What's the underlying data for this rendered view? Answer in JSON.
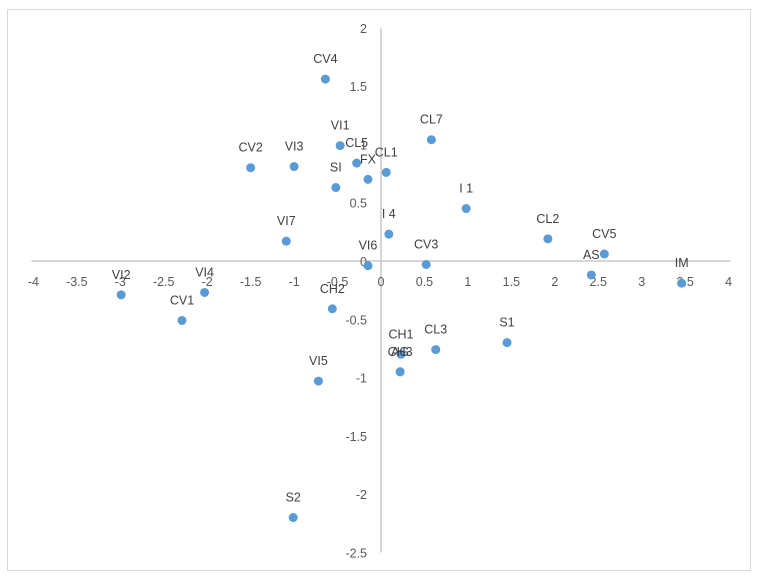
{
  "chart_data": {
    "type": "scatter",
    "title": "",
    "xlabel": "",
    "ylabel": "",
    "xlim": [
      -4,
      4
    ],
    "ylim": [
      -2.5,
      2
    ],
    "x_ticks": [
      -4,
      -3.5,
      -3,
      -2.5,
      -2,
      -1.5,
      -1,
      -0.5,
      0,
      0.5,
      1,
      1.5,
      2,
      2.5,
      3,
      3.5,
      4
    ],
    "y_ticks": [
      2,
      1.5,
      1,
      0.5,
      0,
      -0.5,
      -1,
      -1.5,
      -2,
      -2.5
    ],
    "grid": false,
    "legend": null,
    "marker_color": "#5b9bd5",
    "axis_color": "#bfbfbf",
    "points": [
      {
        "label": "CV4",
        "x": -0.64,
        "y": 1.56
      },
      {
        "label": "CL7",
        "x": 0.58,
        "y": 1.04
      },
      {
        "label": "VI1",
        "x": -0.47,
        "y": 0.99
      },
      {
        "label": "CL5",
        "x": -0.28,
        "y": 0.84
      },
      {
        "label": "FX",
        "x": -0.15,
        "y": 0.7
      },
      {
        "label": "CL1",
        "x": 0.06,
        "y": 0.76
      },
      {
        "label": "CV2",
        "x": -1.5,
        "y": 0.8
      },
      {
        "label": "VI3",
        "x": -1.0,
        "y": 0.81
      },
      {
        "label": "SI",
        "x": -0.52,
        "y": 0.63
      },
      {
        "label": "I 1",
        "x": 0.98,
        "y": 0.45
      },
      {
        "label": "I 4",
        "x": 0.09,
        "y": 0.23
      },
      {
        "label": "VI7",
        "x": -1.09,
        "y": 0.17
      },
      {
        "label": "CL2",
        "x": 1.92,
        "y": 0.19
      },
      {
        "label": "CV5",
        "x": 2.57,
        "y": 0.06
      },
      {
        "label": "AS",
        "x": 2.42,
        "y": -0.12
      },
      {
        "label": "IM",
        "x": 3.46,
        "y": -0.19
      },
      {
        "label": "VI6",
        "x": -0.15,
        "y": -0.04
      },
      {
        "label": "CV3",
        "x": 0.52,
        "y": -0.03
      },
      {
        "label": "VI2",
        "x": -2.99,
        "y": -0.29
      },
      {
        "label": "VI4",
        "x": -2.03,
        "y": -0.27
      },
      {
        "label": "CV1",
        "x": -2.29,
        "y": -0.51
      },
      {
        "label": "CH2",
        "x": -0.56,
        "y": -0.41
      },
      {
        "label": "CH1",
        "x": 0.23,
        "y": -0.8
      },
      {
        "label": "CL3",
        "x": 0.63,
        "y": -0.76
      },
      {
        "label": "S1",
        "x": 1.45,
        "y": -0.7
      },
      {
        "label": "CH3",
        "x": 0.22,
        "y": -0.95
      },
      {
        "label": "AG",
        "x": 0.22,
        "y": -0.95
      },
      {
        "label": "VI5",
        "x": -0.72,
        "y": -1.03
      },
      {
        "label": "S2",
        "x": -1.01,
        "y": -2.2
      }
    ]
  }
}
